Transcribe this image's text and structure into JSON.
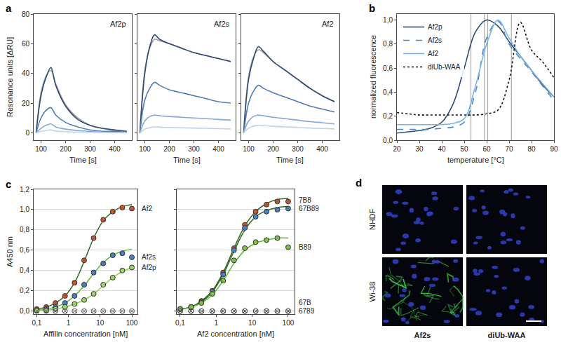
{
  "chart_data": [
    {
      "panel_label": "a",
      "type": "line",
      "title": "Af2p",
      "x_label": "Time [s]",
      "y_label": "Resonance units [ΔRU]",
      "x": [
        80,
        100,
        120,
        140,
        160,
        200,
        250,
        300,
        350,
        400,
        450
      ],
      "xlim": [
        70,
        470
      ],
      "xticks": [
        100,
        200,
        300,
        400
      ],
      "ylim": [
        -5,
        80
      ],
      "yticks": [
        0,
        20,
        40,
        60,
        80
      ],
      "series": [
        {
          "color": "#a0a0a0",
          "values": [
            0,
            27,
            38,
            42,
            33,
            19,
            10,
            5,
            3,
            1.5,
            1
          ]
        },
        {
          "color": "#2f4b74",
          "values": [
            0,
            25,
            37,
            44,
            32,
            18,
            9,
            5,
            3,
            2,
            1
          ]
        },
        {
          "color": "#4f7cb5",
          "values": [
            0,
            10,
            15,
            17,
            12,
            7,
            4,
            2,
            1,
            1,
            0.5
          ]
        },
        {
          "color": "#86aad8",
          "values": [
            0,
            3,
            5,
            6,
            4,
            2.5,
            1.5,
            1,
            0.5,
            0.3,
            0.2
          ]
        },
        {
          "color": "#bcd3ec",
          "values": [
            0,
            1,
            1.5,
            2,
            1.2,
            0.8,
            0.5,
            0.3,
            0.2,
            0.1,
            0
          ]
        }
      ]
    },
    {
      "type": "line",
      "title": "Af2s",
      "x_label": "Time [s]",
      "tick_labels": "x",
      "x": [
        80,
        100,
        120,
        140,
        160,
        200,
        250,
        300,
        350,
        400,
        450
      ],
      "xlim": [
        70,
        470
      ],
      "xticks": [
        100,
        200,
        300,
        400
      ],
      "ylim": [
        -5,
        80
      ],
      "yticks": [
        0,
        20,
        40,
        60,
        80
      ],
      "series": [
        {
          "color": "#a0a0a0",
          "values": [
            0,
            42,
            57,
            63,
            62,
            60,
            57,
            54,
            52,
            50,
            48
          ]
        },
        {
          "color": "#2f4b74",
          "values": [
            0,
            40,
            58,
            66,
            63,
            60,
            57,
            54,
            52,
            50,
            48
          ]
        },
        {
          "color": "#4f7cb5",
          "values": [
            0,
            22,
            30,
            34,
            32,
            29,
            27,
            25,
            23,
            21,
            20
          ]
        },
        {
          "color": "#86aad8",
          "values": [
            0,
            8,
            11,
            12,
            11.5,
            11,
            10.5,
            10,
            9.5,
            9,
            8.5
          ]
        },
        {
          "color": "#bcd3ec",
          "values": [
            0,
            2.5,
            3.5,
            4,
            3.8,
            3.6,
            3.4,
            3.2,
            3,
            2.8,
            2.6
          ]
        }
      ]
    },
    {
      "type": "line",
      "title": "Af2",
      "x_label": "Time [s]",
      "tick_labels": "x",
      "x": [
        80,
        100,
        120,
        140,
        160,
        200,
        250,
        300,
        350,
        400,
        450
      ],
      "xlim": [
        70,
        470
      ],
      "xticks": [
        100,
        200,
        300,
        400
      ],
      "ylim": [
        -5,
        80
      ],
      "yticks": [
        0,
        20,
        40,
        60,
        80
      ],
      "series": [
        {
          "color": "#a0a0a0",
          "values": [
            0,
            38,
            51,
            56,
            54,
            48,
            42,
            36,
            30,
            25,
            21
          ]
        },
        {
          "color": "#2f4b74",
          "values": [
            0,
            36,
            50,
            58,
            55,
            48,
            42,
            36,
            30,
            25,
            21
          ]
        },
        {
          "color": "#4f7cb5",
          "values": [
            0,
            20,
            28,
            32,
            30,
            27,
            24,
            21,
            18,
            16,
            14
          ]
        },
        {
          "color": "#86aad8",
          "values": [
            0,
            8,
            11,
            12,
            11.5,
            10.5,
            9.5,
            8.5,
            7.5,
            6.8,
            6
          ]
        },
        {
          "color": "#bcd3ec",
          "values": [
            0,
            3,
            4.5,
            5,
            4.8,
            4.4,
            4,
            3.6,
            3.2,
            2.9,
            2.6
          ]
        }
      ]
    },
    {
      "panel_label": "b",
      "type": "line",
      "x_label": "temperature [°C]",
      "y_label": "normalized fluorescence",
      "legend": "upper left",
      "x": [
        20,
        25,
        30,
        35,
        40,
        45,
        50,
        55,
        60,
        65,
        70,
        75,
        80,
        85,
        90
      ],
      "xlim": [
        20,
        90
      ],
      "xticks": [
        20,
        30,
        40,
        50,
        60,
        70,
        80,
        90
      ],
      "ylim": [
        0,
        1.05
      ],
      "yticks": [
        {
          "value": 0,
          "label": "0,0"
        },
        {
          "value": 0.2,
          "label": "0,2"
        },
        {
          "value": 0.4,
          "label": "0,4"
        },
        {
          "value": 0.6,
          "label": "0,6"
        },
        {
          "value": 0.8,
          "label": "0,8"
        },
        {
          "value": 1,
          "label": "1,0"
        }
      ],
      "vlines": [
        53,
        59,
        60.5,
        71
      ],
      "series": [
        {
          "name": "Af2p",
          "color": "#2f4b74",
          "line_style": "solid",
          "values": [
            0.06,
            0.07,
            0.08,
            0.1,
            0.15,
            0.3,
            0.6,
            0.9,
            1.0,
            0.95,
            0.82,
            0.7,
            0.58,
            0.46,
            0.36
          ]
        },
        {
          "name": "Af2s",
          "color": "#4a86c8",
          "line_style": "dashed",
          "values": [
            0.09,
            0.09,
            0.09,
            0.09,
            0.1,
            0.11,
            0.15,
            0.4,
            0.85,
            0.99,
            0.8,
            0.68,
            0.57,
            0.45,
            0.33
          ]
        },
        {
          "name": "Af2",
          "color": "#7db3e3",
          "line_style": "solid",
          "values": [
            0.13,
            0.13,
            0.13,
            0.13,
            0.13,
            0.14,
            0.18,
            0.45,
            0.8,
            1.0,
            0.85,
            0.7,
            0.58,
            0.47,
            0.36
          ]
        },
        {
          "name": "diUb-WAA",
          "color": "#111111",
          "line_style": "dotted",
          "values": [
            0.23,
            0.22,
            0.21,
            0.21,
            0.21,
            0.21,
            0.21,
            0.21,
            0.22,
            0.25,
            0.5,
            0.98,
            0.75,
            0.65,
            0.52
          ]
        }
      ]
    },
    {
      "panel_label": "c",
      "type": "scatter",
      "log": "x",
      "grid": "y",
      "x_label": "Affilin concentration [nM]",
      "y_label": "A450 nm",
      "x": [
        0.1,
        0.2,
        0.39,
        0.78,
        1.56,
        3.13,
        6.25,
        12.5,
        25,
        50,
        100
      ],
      "xlim": [
        0.08,
        150
      ],
      "xticks": [
        {
          "value": 0.1,
          "label": "0,1"
        },
        1,
        10,
        100
      ],
      "ylim": [
        -0.03,
        1.2
      ],
      "yticks": [
        {
          "value": 0,
          "label": "0,0"
        },
        {
          "value": 0.2,
          "label": "0,2"
        },
        {
          "value": 0.4,
          "label": "0,4"
        },
        {
          "value": 0.6,
          "label": "0,6"
        },
        {
          "value": 0.8,
          "label": "0,8"
        },
        {
          "value": 1,
          "label": "1,0"
        },
        {
          "value": 1.2,
          "label": "1,2"
        }
      ],
      "series": [
        {
          "name": "Af2",
          "color": "#c2552e",
          "marker": "circle",
          "values": [
            0.02,
            0.04,
            0.08,
            0.15,
            0.28,
            0.5,
            0.72,
            0.9,
            0.98,
            1.02,
            1.01
          ],
          "fit": [
            0.02,
            0.04,
            0.08,
            0.15,
            0.28,
            0.49,
            0.72,
            0.89,
            0.98,
            1.03,
            1.05
          ],
          "fit_color": "#2d6a1f"
        },
        {
          "name": "Af2s",
          "color": "#4a7fbf",
          "marker": "circle",
          "values": [
            0.01,
            0.02,
            0.04,
            0.08,
            0.15,
            0.26,
            0.38,
            0.47,
            0.55,
            0.57,
            0.53
          ],
          "fit": [
            0.01,
            0.02,
            0.04,
            0.08,
            0.15,
            0.25,
            0.37,
            0.48,
            0.55,
            0.59,
            0.61
          ],
          "fit_color": "#5cb82e"
        },
        {
          "name": "Af2p",
          "color": "#9fd46a",
          "marker": "circle",
          "values": [
            0.01,
            0.01,
            0.02,
            0.04,
            0.07,
            0.11,
            0.17,
            0.26,
            0.33,
            0.4,
            0.43
          ],
          "fit": [
            0.01,
            0.01,
            0.02,
            0.04,
            0.07,
            0.11,
            0.17,
            0.25,
            0.33,
            0.39,
            0.43
          ],
          "fit_color": "#8fd14f"
        },
        {
          "color": "#555555",
          "marker": "circle-x-open",
          "values": [
            0,
            0,
            0,
            0,
            0,
            0,
            0,
            0,
            0,
            0,
            0
          ]
        }
      ]
    },
    {
      "type": "scatter",
      "log": "x",
      "grid": "y",
      "x_label": "Af2 concentration [nM]",
      "tick_labels": "x",
      "x": [
        0.1,
        0.2,
        0.39,
        0.78,
        1.56,
        3.13,
        6.25,
        12.5,
        25,
        50,
        100
      ],
      "xlim": [
        0.08,
        150
      ],
      "xticks": [
        {
          "value": 0.1,
          "label": "0,1"
        },
        1,
        10,
        100
      ],
      "ylim": [
        -0.03,
        1.2
      ],
      "yticks": [
        {
          "value": 0,
          "label": "0,0"
        },
        {
          "value": 0.2,
          "label": "0,2"
        },
        {
          "value": 0.4,
          "label": "0,4"
        },
        {
          "value": 0.6,
          "label": "0,6"
        },
        {
          "value": 0.8,
          "label": "0,8"
        },
        {
          "value": 1,
          "label": "1,0"
        },
        {
          "value": 1.2,
          "label": "1,2"
        }
      ],
      "series": [
        {
          "name": "7B8",
          "color": "#c2552e",
          "marker": "circle",
          "values": [
            0.02,
            0.04,
            0.1,
            0.2,
            0.38,
            0.62,
            0.85,
            0.98,
            1.05,
            1.08,
            1.08
          ],
          "fit": [
            0.02,
            0.04,
            0.1,
            0.2,
            0.38,
            0.62,
            0.84,
            0.98,
            1.06,
            1.1,
            1.11
          ],
          "fit_color": "#2d6a1f"
        },
        {
          "name": "67B89",
          "color": "#4a7fbf",
          "marker": "circle",
          "values": [
            0.02,
            0.04,
            0.09,
            0.19,
            0.36,
            0.6,
            0.82,
            0.93,
            0.98,
            1.0,
            1.01
          ],
          "fit": [
            0.02,
            0.04,
            0.09,
            0.19,
            0.36,
            0.59,
            0.8,
            0.93,
            0.99,
            1.02,
            1.03
          ],
          "fit_color": "#2d6a1f"
        },
        {
          "name": "B89",
          "color": "#7cc04a",
          "marker": "circle",
          "values": [
            0.02,
            0.04,
            0.08,
            0.17,
            0.3,
            0.5,
            0.62,
            0.68,
            0.7,
            0.72,
            0.63
          ],
          "fit": [
            0.02,
            0.04,
            0.08,
            0.16,
            0.3,
            0.47,
            0.6,
            0.67,
            0.7,
            0.72,
            0.72
          ],
          "fit_color": "#5cb82e"
        },
        {
          "name": "67B",
          "color": "#555555",
          "marker": "circle-x-open",
          "values": [
            0,
            0,
            0,
            0,
            0,
            0,
            0,
            0,
            0,
            0,
            0
          ]
        },
        {
          "name": "6789",
          "color": "#555555",
          "marker": "circle-x-open",
          "values": [
            0,
            0,
            0,
            0,
            0,
            0,
            0,
            0,
            0,
            0,
            0
          ]
        }
      ]
    }
  ],
  "panel_d": {
    "panel_label": "d",
    "rows": [
      "NHDF",
      "Wi-38"
    ],
    "columns": [
      "Af2s",
      "diUb-WAA"
    ]
  }
}
